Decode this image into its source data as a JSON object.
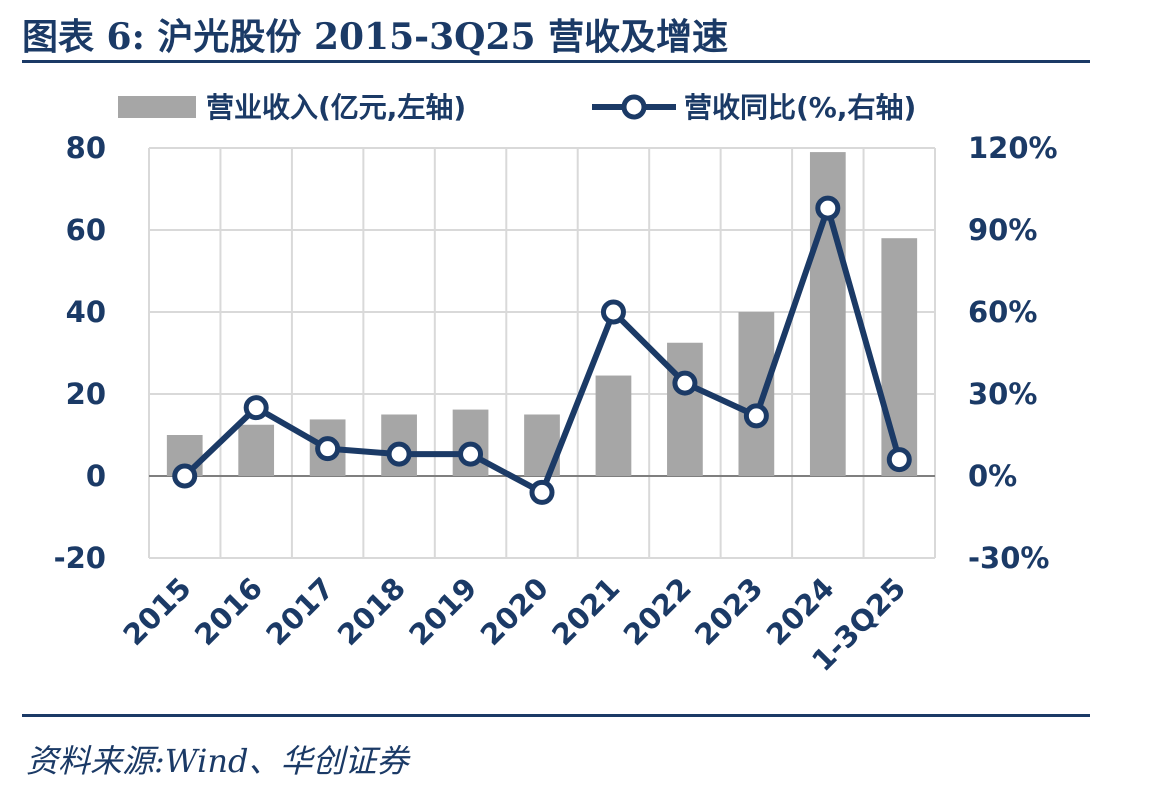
{
  "header": {
    "title": "图表 6:  沪光股份 2015-3Q25 营收及增速"
  },
  "footer": {
    "source": "资料来源:Wind、华创证券"
  },
  "colors": {
    "bar": "#a6a6a6",
    "line": "#1b3a66",
    "text": "#1b3a66",
    "grid": "#d9d9d9"
  },
  "chart_data": {
    "type": "bar",
    "categories": [
      "2015",
      "2016",
      "2017",
      "2018",
      "2019",
      "2020",
      "2021",
      "2022",
      "2023",
      "2024",
      "1-3Q25"
    ],
    "series": [
      {
        "name": "营业收入(亿元,左轴)",
        "type": "bar",
        "axis": "left",
        "values": [
          10.0,
          12.5,
          13.8,
          15.0,
          16.2,
          15.0,
          24.5,
          32.5,
          40.0,
          79.0,
          58.0
        ]
      },
      {
        "name": "营收同比(%,右轴)",
        "type": "line",
        "axis": "right",
        "values": [
          0,
          25,
          10,
          8,
          8,
          -6,
          60,
          34,
          22,
          98,
          6
        ]
      }
    ],
    "y_left": {
      "ticks": [
        "80",
        "60",
        "40",
        "20",
        "0",
        "-20"
      ],
      "ylim": [
        -20,
        80
      ]
    },
    "y_right": {
      "ticks": [
        "120%",
        "90%",
        "60%",
        "30%",
        "0%",
        "-30%"
      ],
      "ylim": [
        -30,
        120
      ]
    },
    "grid": true,
    "legend": "top"
  }
}
